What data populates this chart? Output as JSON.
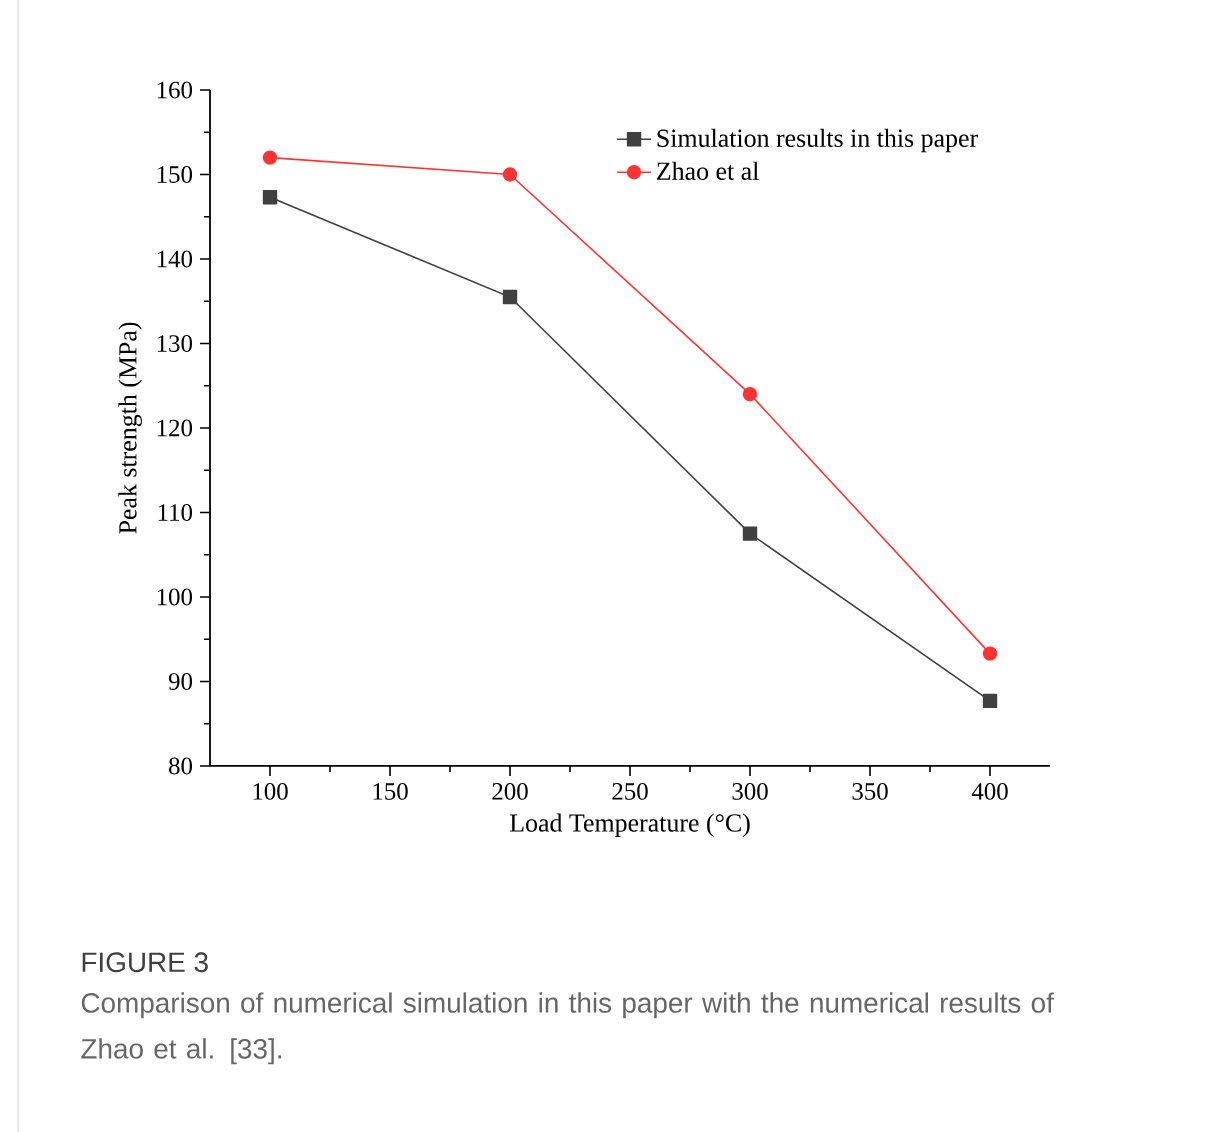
{
  "chart_data": {
    "type": "line",
    "xlabel": "Load Temperature (°C)",
    "ylabel": "Peak strength (MPa)",
    "x": [
      100,
      200,
      300,
      400
    ],
    "series": [
      {
        "name": "Simulation results in this paper",
        "color": "#404040",
        "marker": "square",
        "values": [
          147.3,
          135.5,
          107.5,
          87.7
        ]
      },
      {
        "name": "Zhao et al",
        "color": "#ff3333",
        "marker": "circle",
        "values": [
          152,
          150,
          124,
          93.3
        ]
      }
    ],
    "xlim": [
      75,
      425
    ],
    "xticks": [
      100,
      150,
      200,
      250,
      300,
      350,
      400
    ],
    "ylim": [
      80,
      160
    ],
    "yticks": [
      80,
      90,
      100,
      110,
      120,
      130,
      140,
      150,
      160
    ],
    "grid": false,
    "legend": "top right",
    "line_style": "solid",
    "annotations": [
      "FIGURE 3",
      "Comparison of numerical simulation in this paper with the numerical results of Zhao et al. [33]."
    ]
  }
}
